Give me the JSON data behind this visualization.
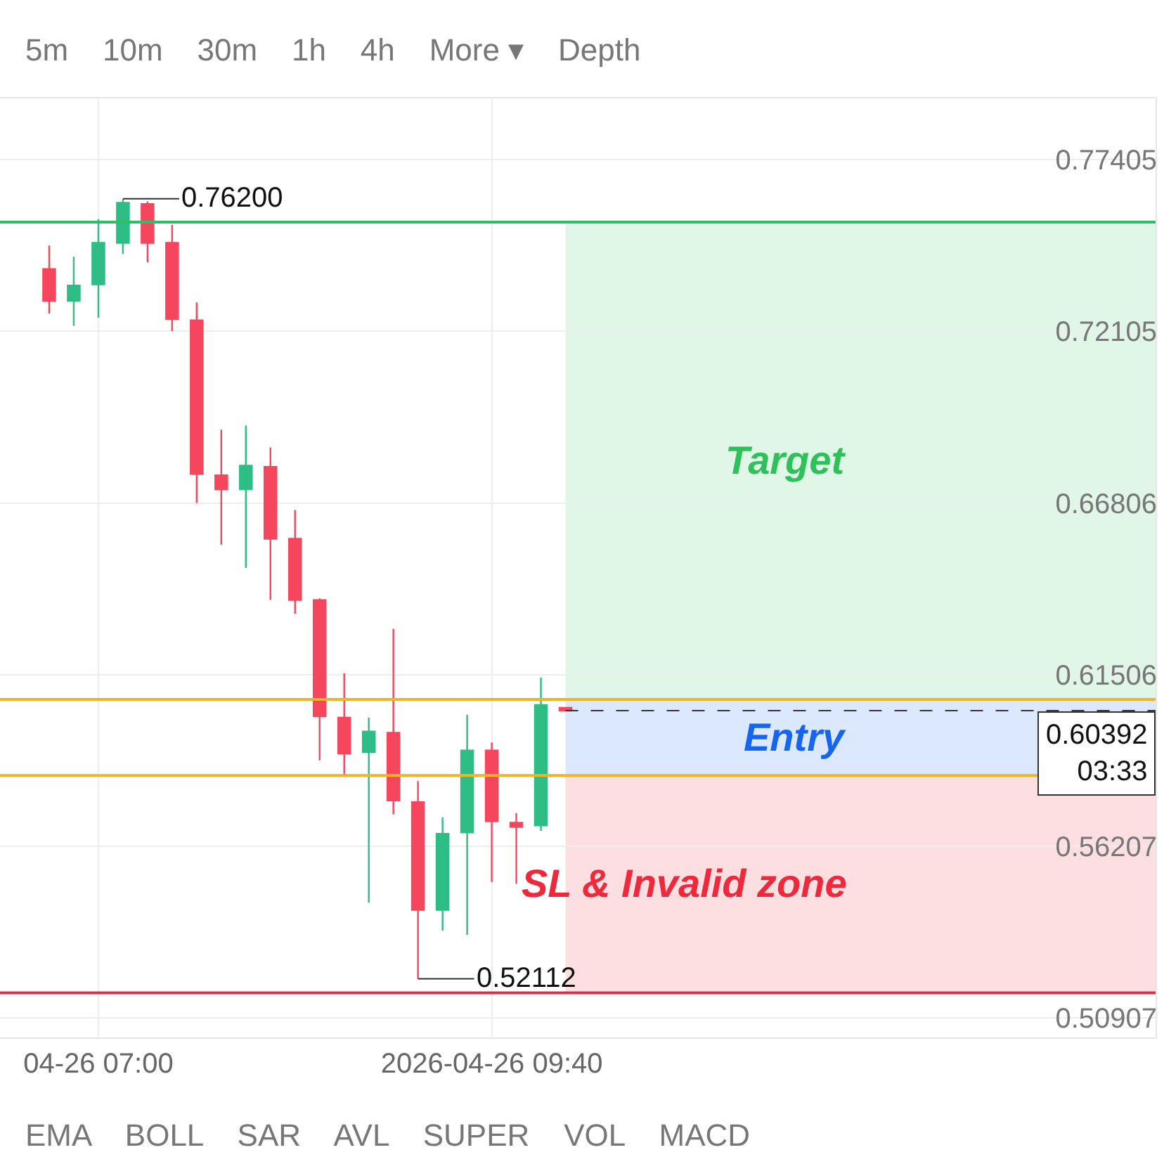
{
  "chart_data": {
    "type": "candlestick",
    "x": [
      "2026-04-26T06:40",
      "2026-04-26T06:50",
      "2026-04-26T07:00",
      "2026-04-26T07:10",
      "2026-04-26T07:20",
      "2026-04-26T07:30",
      "2026-04-26T07:40",
      "2026-04-26T07:50",
      "2026-04-26T08:00",
      "2026-04-26T08:10",
      "2026-04-26T08:20",
      "2026-04-26T08:30",
      "2026-04-26T08:40",
      "2026-04-26T08:50",
      "2026-04-26T09:00",
      "2026-04-26T09:10",
      "2026-04-26T09:20",
      "2026-04-26T09:30",
      "2026-04-26T09:40",
      "2026-04-26T09:50",
      "2026-04-26T10:00",
      "2026-04-26T10:10"
    ],
    "ohlc": [
      [
        0.7403,
        0.7476,
        0.7266,
        0.7305
      ],
      [
        0.7305,
        0.7441,
        0.7228,
        0.7352
      ],
      [
        0.7356,
        0.7557,
        0.7253,
        0.7484
      ],
      [
        0.7484,
        0.762,
        0.745,
        0.7608
      ],
      [
        0.7604,
        0.7612,
        0.7424,
        0.7484
      ],
      [
        0.7484,
        0.754,
        0.7211,
        0.7249
      ],
      [
        0.7245,
        0.73,
        0.6681,
        0.677
      ],
      [
        0.6766,
        0.6907,
        0.6552,
        0.6723
      ],
      [
        0.6723,
        0.692,
        0.648,
        0.6796
      ],
      [
        0.6792,
        0.6852,
        0.6381,
        0.657
      ],
      [
        0.657,
        0.6659,
        0.6339,
        0.6381
      ],
      [
        0.6381,
        0.6386,
        0.5886,
        0.6022
      ],
      [
        0.6018,
        0.6155,
        0.5839,
        0.5907
      ],
      [
        0.5911,
        0.6018,
        0.5446,
        0.5975
      ],
      [
        0.5971,
        0.6292,
        0.5719,
        0.5762
      ],
      [
        0.5757,
        0.5822,
        0.52112,
        0.5424
      ],
      [
        0.5424,
        0.571,
        0.536,
        0.5659
      ],
      [
        0.5663,
        0.6027,
        0.5347,
        0.5916
      ],
      [
        0.5916,
        0.5941,
        0.551,
        0.5698
      ],
      [
        0.5693,
        0.5723,
        0.5505,
        0.568
      ],
      [
        0.5685,
        0.6142,
        0.5668,
        0.6057
      ],
      [
        0.6048,
        0.6048,
        0.60392,
        0.60392
      ]
    ],
    "colors": [
      "#f6465d",
      "#2ebd85",
      "#2ebd85",
      "#2ebd85",
      "#f6465d",
      "#f6465d",
      "#f6465d",
      "#f6465d",
      "#2ebd85",
      "#f6465d",
      "#f6465d",
      "#f6465d",
      "#f6465d",
      "#2ebd85",
      "#f6465d",
      "#f6465d",
      "#2ebd85",
      "#2ebd85",
      "#f6465d",
      "#f6465d",
      "#2ebd85",
      "#f6465d"
    ],
    "xlim": [
      "2026-04-26T06:20",
      "2026-04-26T14:10"
    ],
    "xticks": [
      {
        "value": "2026-04-26T07:00",
        "label": "04-26 07:00"
      },
      {
        "value": "2026-04-26T09:40",
        "label": "2026-04-26 09:40"
      }
    ],
    "ylim": [
      0.503,
      0.793
    ],
    "yticks": [
      0.77405,
      0.72105,
      0.66806,
      0.61506,
      0.56207,
      0.50907
    ],
    "grid": true,
    "ref_lines": [
      {
        "axis": "y",
        "value": 0.7548,
        "color": "#2ebd6b",
        "line_style": "solid"
      },
      {
        "axis": "y",
        "value": 0.6074,
        "color": "#f0b429",
        "line_style": "solid"
      },
      {
        "axis": "y",
        "value": 0.5839,
        "color": "#f0b429",
        "line_style": "solid"
      },
      {
        "axis": "y",
        "value": 0.5168,
        "color": "#d9304a",
        "line_style": "solid"
      },
      {
        "axis": "y",
        "value": 0.60392,
        "label": "0.60392\n03:33",
        "color": "#333333",
        "line_style": "dashed"
      }
    ],
    "bands": [
      {
        "axis": "y",
        "from": 0.6074,
        "to": 0.7548,
        "label": "Target",
        "color": "#2ec15a"
      },
      {
        "axis": "y",
        "from": 0.5839,
        "to": 0.6074,
        "label": "Entry",
        "color": "#1565f0"
      },
      {
        "axis": "y",
        "from": 0.5168,
        "to": 0.5839,
        "label": "SL & Invalid zone",
        "color": "#f0283c"
      }
    ],
    "annotations": [
      "5m    10m    30m    1h    4h    More ▾    Depth",
      "EMA    BOLL    SAR    AVL    SUPER    VOL    MACD",
      {
        "text": "0.76200",
        "x": "2026-04-26T07:10",
        "y": 0.762
      },
      {
        "text": "0.52112",
        "x": "2026-04-26T09:10",
        "y": 0.52112
      }
    ]
  }
}
